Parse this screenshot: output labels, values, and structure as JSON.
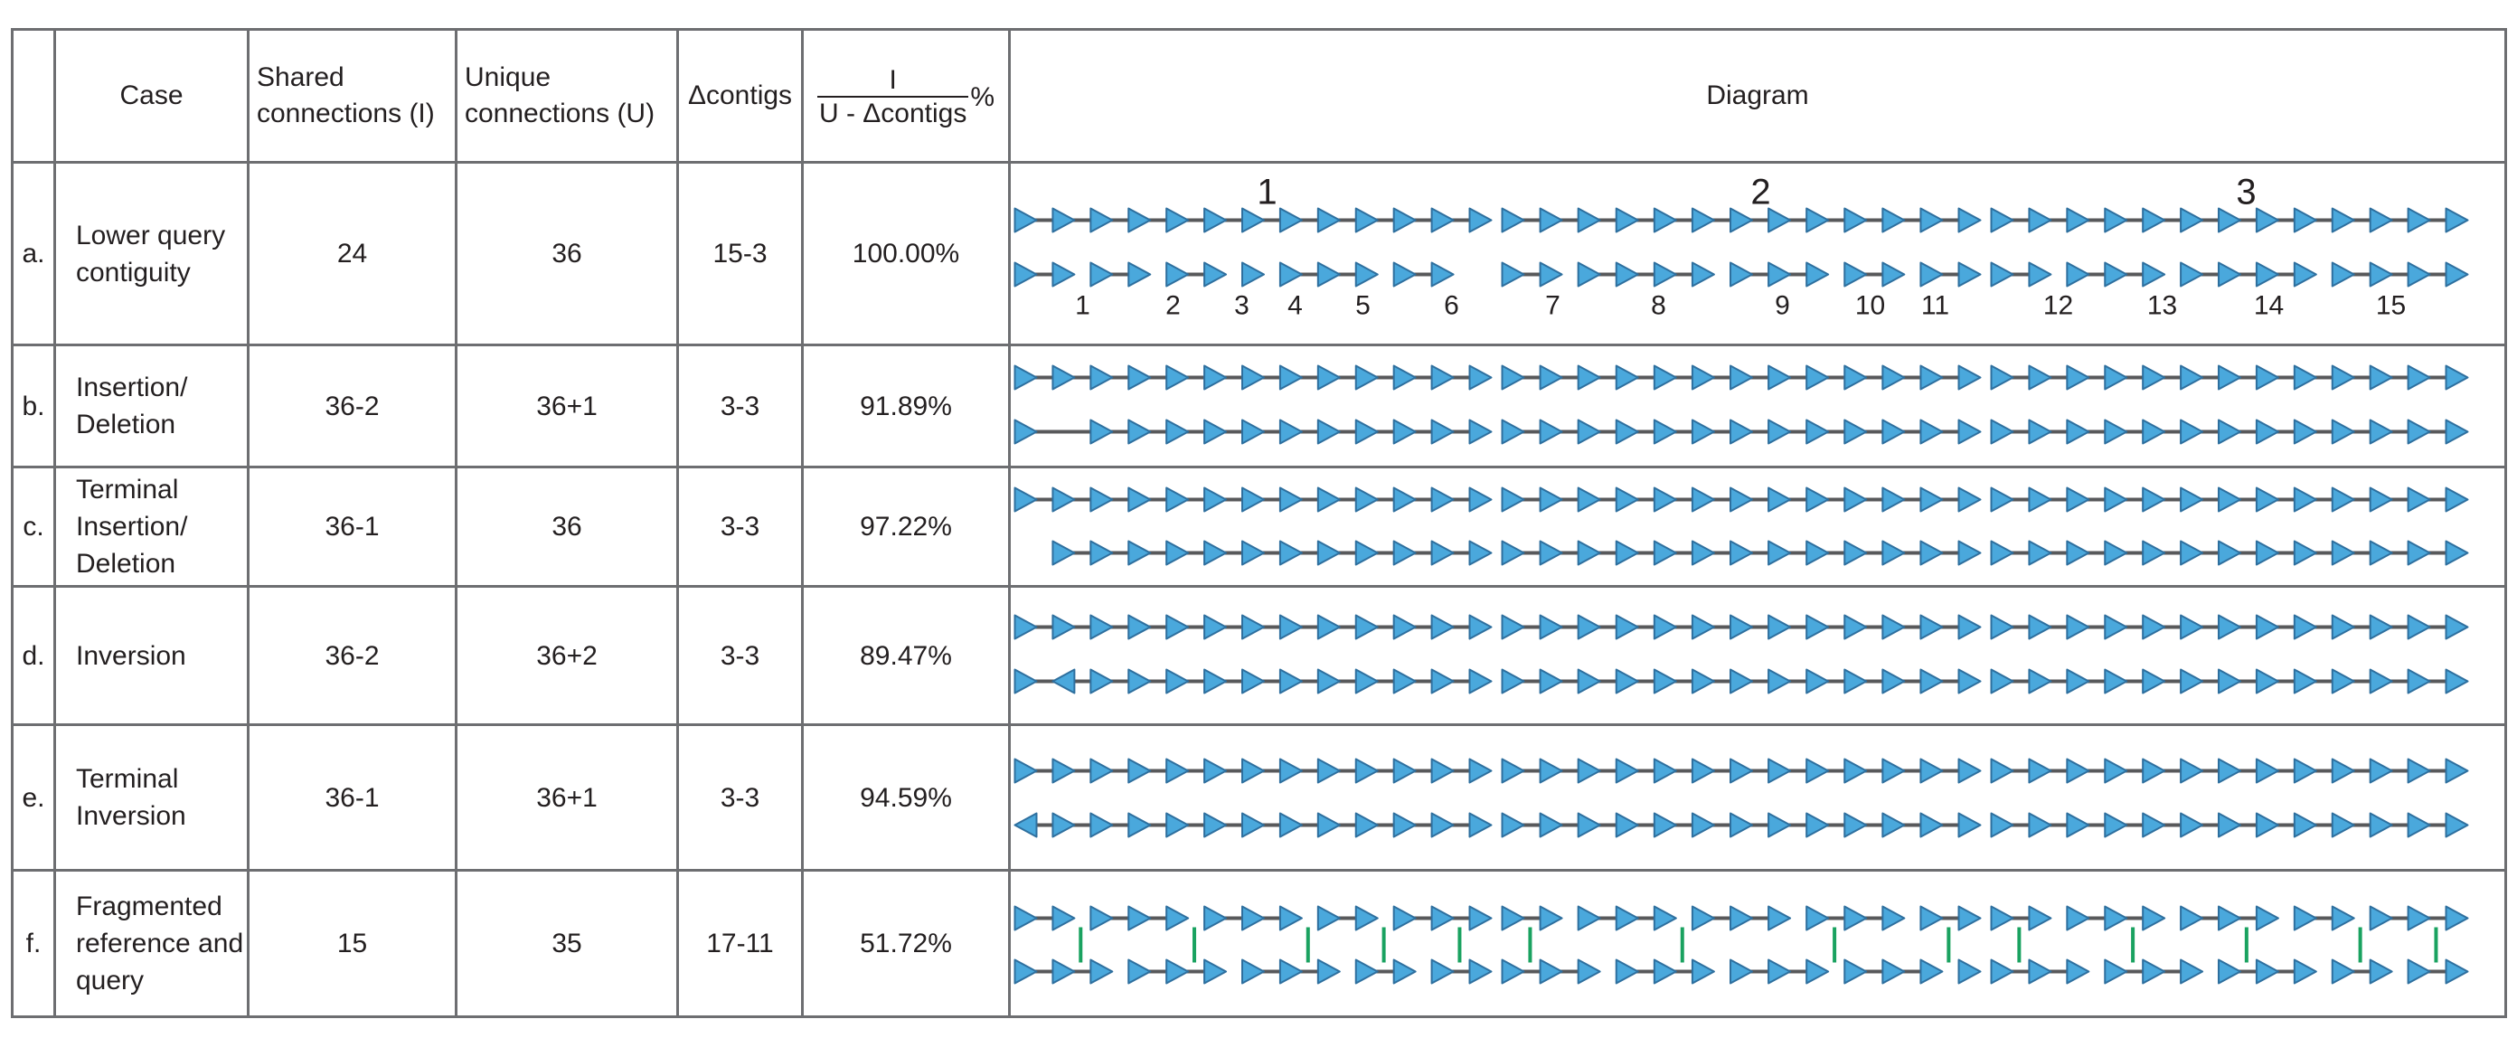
{
  "header": {
    "case": "Case",
    "shared": "Shared connections (I)",
    "unique": "Unique connections (U)",
    "delta": "Δcontigs",
    "ratio_num": "I",
    "ratio_den": "U - Δcontigs",
    "ratio_pct": "%",
    "diagram": "Diagram"
  },
  "rows": [
    {
      "id": "a.",
      "case": "Lower query contiguity",
      "shared": "24",
      "unique": "36",
      "delta": "15-3",
      "ratio": "100.00%"
    },
    {
      "id": "b.",
      "case": "Insertion/ Deletion",
      "shared": "36-2",
      "unique": "36+1",
      "delta": "3-3",
      "ratio": "91.89%"
    },
    {
      "id": "c.",
      "case": "Terminal Insertion/ Deletion",
      "shared": "36-1",
      "unique": "36",
      "delta": "3-3",
      "ratio": "97.22%"
    },
    {
      "id": "d.",
      "case": "Inversion",
      "shared": "36-2",
      "unique": "36+2",
      "delta": "3-3",
      "ratio": "89.47%"
    },
    {
      "id": "e.",
      "case": "Terminal Inversion",
      "shared": "36-1",
      "unique": "36+1",
      "delta": "3-3",
      "ratio": "94.59%"
    },
    {
      "id": "f.",
      "case": "Fragmented reference and query",
      "shared": "15",
      "unique": "35",
      "delta": "17-11",
      "ratio": "51.72%"
    }
  ],
  "diagram": {
    "group_labels": [
      "1",
      "2",
      "3"
    ],
    "contig_labels": [
      "1",
      "2",
      "3",
      "4",
      "5",
      "6",
      "7",
      "8",
      "9",
      "10",
      "11",
      "12",
      "13",
      "14",
      "15"
    ],
    "colors": {
      "arrow_fill": "#4aa8dc",
      "arrow_stroke": "#2e6f9e",
      "line": "#58595b",
      "link": "#1aa260"
    }
  }
}
